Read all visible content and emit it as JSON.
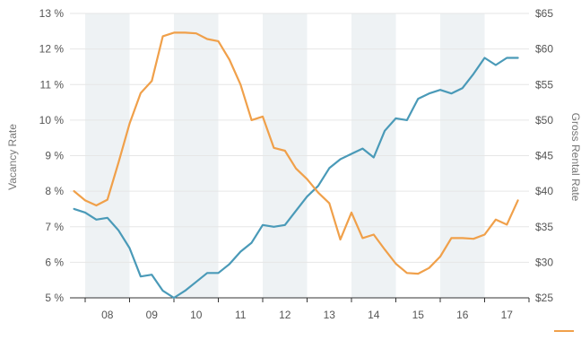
{
  "chart_data": {
    "type": "line",
    "title": "",
    "ylabel_left": "Vacancy Rate",
    "ylabel_right": "Gross Rental Rate",
    "x_tick_labels": [
      "08",
      "09",
      "10",
      "11",
      "12",
      "13",
      "14",
      "15",
      "16",
      "17"
    ],
    "shaded_years": [
      "08",
      "10",
      "12",
      "14",
      "16"
    ],
    "left_axis": {
      "min": 5,
      "max": 13,
      "step": 1,
      "tick_labels": [
        "5 %",
        "6 %",
        "7 %",
        "8 %",
        "9 %",
        "10 %",
        "11 %",
        "12 %",
        "13 %"
      ]
    },
    "right_axis": {
      "min": 25,
      "max": 65,
      "step": 5,
      "tick_labels": [
        "$25",
        "$30",
        "$35",
        "$40",
        "$45",
        "$50",
        "$55",
        "$60",
        "$65"
      ]
    },
    "grid": "horizontal",
    "x_start": 2007.75,
    "x_step": 0.25,
    "series": [
      {
        "name": "",
        "axis": "left",
        "color": "#4a9ab8",
        "values": [
          7.5,
          7.4,
          7.2,
          7.25,
          6.9,
          6.4,
          5.6,
          5.65,
          5.2,
          5.0,
          5.2,
          5.45,
          5.7,
          5.7,
          5.95,
          6.3,
          6.55,
          7.05,
          7.0,
          7.05,
          7.45,
          7.85,
          8.15,
          8.65,
          8.9,
          9.05,
          9.2,
          8.95,
          9.7,
          10.05,
          10.0,
          10.6,
          10.75,
          10.85,
          10.75,
          10.9,
          11.3,
          11.75,
          11.55,
          11.75,
          11.75
        ]
      },
      {
        "name": "",
        "axis": "right",
        "color": "#f0a04a",
        "values": [
          40.0,
          38.7,
          38.0,
          38.8,
          44.0,
          49.5,
          53.8,
          55.5,
          61.8,
          62.3,
          62.3,
          62.2,
          61.4,
          61.1,
          58.5,
          55.0,
          50.0,
          50.5,
          46.1,
          45.7,
          43.2,
          41.7,
          39.8,
          38.3,
          33.2,
          37.0,
          33.4,
          33.9,
          31.8,
          29.8,
          28.5,
          28.4,
          29.2,
          30.8,
          33.4,
          33.4,
          33.3,
          33.9,
          36.0,
          35.3,
          38.7
        ]
      }
    ],
    "legend": "bottom-right"
  }
}
